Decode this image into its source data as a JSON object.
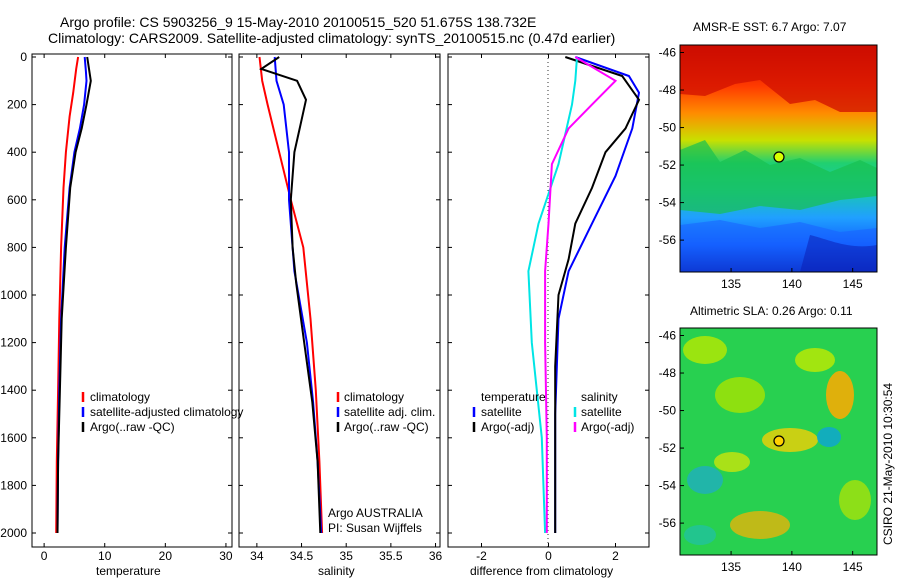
{
  "title_line1": "Argo profile: CS 5903256_9 15-May-2010 20100515_520 51.675S 138.732E",
  "title_line2": "Climatology: CARS2009. Satellite-adjusted climatology: synTS_20100515.nc (0.47d earlier)",
  "depth_ticks": [
    "0",
    "200",
    "400",
    "600",
    "800",
    "1000",
    "1200",
    "1400",
    "1600",
    "1800",
    "2000"
  ],
  "colors": {
    "clim": "#ff0000",
    "sat": "#0000ff",
    "argo": "#000000",
    "salsat": "#00e5e5",
    "salargo": "#ff00ff"
  },
  "temperature_panel": {
    "xlabel": "temperature",
    "xticks": [
      "0",
      "10",
      "20",
      "30"
    ],
    "legend": [
      "climatology",
      "satellite-adjusted climatology",
      "Argo(..raw -QC)"
    ]
  },
  "salinity_panel": {
    "xlabel": "salinity",
    "xticks": [
      "34",
      "34.5",
      "35",
      "35.5",
      "36"
    ],
    "legend": [
      "climatology",
      "satellite adj. clim.",
      "Argo(..raw -QC)"
    ],
    "note1": "Argo AUSTRALIA",
    "note2": "PI: Susan Wijffels"
  },
  "difference_panel": {
    "xlabel": "difference from climatology",
    "xticks": [
      "-2",
      "0",
      "2"
    ],
    "legend_temp_head": "temperature",
    "legend_temp": [
      "satellite",
      "Argo(-adj)"
    ],
    "legend_sal_head": "salinity",
    "legend_sal": [
      "satellite",
      "Argo(-adj)"
    ]
  },
  "sst_map": {
    "title": "AMSR-E SST: 6.7 Argo: 7.07",
    "yticks": [
      "-46",
      "-48",
      "-50",
      "-52",
      "-54",
      "-56"
    ],
    "xticks": [
      "135",
      "140",
      "145"
    ]
  },
  "sla_map": {
    "title": "Altimetric SLA: 0.26 Argo: 0.11",
    "yticks": [
      "-46",
      "-48",
      "-50",
      "-52",
      "-54",
      "-56"
    ],
    "xticks": [
      "135",
      "140",
      "145"
    ]
  },
  "side_label": "CSIRO 21-May-2010 10:30:54",
  "chart_data": [
    {
      "type": "line",
      "title": "temperature",
      "xlabel": "temperature",
      "ylabel": "",
      "xlim": [
        -2,
        31
      ],
      "ylim": [
        2050,
        0
      ],
      "series": [
        {
          "name": "climatology",
          "points": [
            [
              5.6,
              0
            ],
            [
              5.3,
              50
            ],
            [
              4.8,
              150
            ],
            [
              4.2,
              250
            ],
            [
              3.6,
              400
            ],
            [
              3.2,
              550
            ],
            [
              2.8,
              800
            ],
            [
              2.5,
              1100
            ],
            [
              2.3,
              1400
            ],
            [
              2.1,
              1700
            ],
            [
              2.0,
              2000
            ]
          ]
        },
        {
          "name": "satellite-adjusted climatology",
          "points": [
            [
              6.7,
              0
            ],
            [
              6.9,
              60
            ],
            [
              7.0,
              100
            ],
            [
              6.6,
              200
            ],
            [
              5.9,
              300
            ],
            [
              5.0,
              400
            ],
            [
              4.2,
              550
            ],
            [
              3.4,
              800
            ],
            [
              2.8,
              1100
            ],
            [
              2.5,
              1400
            ],
            [
              2.3,
              1700
            ],
            [
              2.2,
              2000
            ]
          ]
        },
        {
          "name": "Argo(..raw -QC)",
          "points": [
            [
              7.1,
              0
            ],
            [
              7.4,
              50
            ],
            [
              7.7,
              100
            ],
            [
              7.0,
              200
            ],
            [
              6.2,
              300
            ],
            [
              5.2,
              400
            ],
            [
              4.3,
              550
            ],
            [
              3.6,
              800
            ],
            [
              2.9,
              1100
            ],
            [
              2.6,
              1400
            ],
            [
              2.3,
              1700
            ],
            [
              2.2,
              2000
            ]
          ]
        }
      ]
    },
    {
      "type": "line",
      "title": "salinity",
      "xlabel": "salinity",
      "ylabel": "",
      "xlim": [
        33.8,
        36.05
      ],
      "ylim": [
        2050,
        0
      ],
      "series": [
        {
          "name": "climatology",
          "points": [
            [
              34.03,
              0
            ],
            [
              34.06,
              100
            ],
            [
              34.12,
              200
            ],
            [
              34.25,
              400
            ],
            [
              34.38,
              600
            ],
            [
              34.52,
              800
            ],
            [
              34.6,
              1100
            ],
            [
              34.66,
              1400
            ],
            [
              34.7,
              1700
            ],
            [
              34.73,
              2000
            ]
          ]
        },
        {
          "name": "satellite adj. clim.",
          "points": [
            [
              34.2,
              0
            ],
            [
              34.21,
              50
            ],
            [
              34.22,
              100
            ],
            [
              34.3,
              200
            ],
            [
              34.36,
              400
            ],
            [
              34.36,
              600
            ],
            [
              34.42,
              900
            ],
            [
              34.56,
              1200
            ],
            [
              34.63,
              1450
            ],
            [
              34.68,
              1700
            ],
            [
              34.72,
              2000
            ]
          ]
        },
        {
          "name": "Argo(..raw -QC)",
          "points": [
            [
              34.25,
              0
            ],
            [
              34.05,
              50
            ],
            [
              34.45,
              100
            ],
            [
              34.55,
              180
            ],
            [
              34.48,
              300
            ],
            [
              34.42,
              400
            ],
            [
              34.38,
              600
            ],
            [
              34.4,
              800
            ],
            [
              34.44,
              950
            ],
            [
              34.53,
              1200
            ],
            [
              34.62,
              1450
            ],
            [
              34.68,
              1700
            ],
            [
              34.71,
              2000
            ]
          ]
        }
      ]
    },
    {
      "type": "line",
      "title": "difference from climatology",
      "xlabel": "difference from climatology",
      "ylabel": "",
      "xlim": [
        -3,
        3
      ],
      "ylim": [
        2050,
        0
      ],
      "series": [
        {
          "name": "temperature satellite",
          "points": [
            [
              0.8,
              0
            ],
            [
              2.4,
              80
            ],
            [
              2.7,
              150
            ],
            [
              2.5,
              300
            ],
            [
              2.0,
              500
            ],
            [
              1.3,
              700
            ],
            [
              0.6,
              900
            ],
            [
              0.3,
              1100
            ],
            [
              0.2,
              1500
            ],
            [
              0.2,
              2000
            ]
          ]
        },
        {
          "name": "temperature Argo(-adj)",
          "points": [
            [
              0.5,
              0
            ],
            [
              2.2,
              80
            ],
            [
              2.7,
              180
            ],
            [
              2.3,
              300
            ],
            [
              1.7,
              400
            ],
            [
              1.3,
              550
            ],
            [
              0.8,
              700
            ],
            [
              0.6,
              850
            ],
            [
              0.3,
              1000
            ],
            [
              0.2,
              1300
            ],
            [
              0.2,
              2000
            ]
          ]
        },
        {
          "name": "salinity satellite",
          "points": [
            [
              0.85,
              0
            ],
            [
              0.8,
              100
            ],
            [
              0.7,
              200
            ],
            [
              0.3,
              450
            ],
            [
              -0.3,
              700
            ],
            [
              -0.6,
              900
            ],
            [
              -0.5,
              1200
            ],
            [
              -0.2,
              1600
            ],
            [
              -0.1,
              2000
            ]
          ]
        },
        {
          "name": "salinity Argo(-adj)",
          "points": [
            [
              0.8,
              0
            ],
            [
              2.0,
              100
            ],
            [
              1.3,
              200
            ],
            [
              0.6,
              300
            ],
            [
              0.1,
              450
            ],
            [
              0,
              700
            ],
            [
              -0.1,
              900
            ],
            [
              -0.1,
              1200
            ],
            [
              -0.05,
              1600
            ],
            [
              -0.05,
              2000
            ]
          ]
        }
      ]
    },
    {
      "type": "heatmap",
      "title": "AMSR-E SST: 6.7 Argo: 7.07",
      "xlabel": "",
      "ylabel": "",
      "xlim": [
        130.8,
        147.0
      ],
      "ylim": [
        -57.7,
        -45.6
      ],
      "argo_position": [
        138.732,
        -51.675
      ],
      "sst_argo": 7.07
    },
    {
      "type": "heatmap",
      "title": "Altimetric SLA: 0.26 Argo: 0.11",
      "xlabel": "",
      "ylabel": "",
      "xlim": [
        130.8,
        147.0
      ],
      "ylim": [
        -57.7,
        -45.6
      ],
      "argo_position": [
        138.732,
        -51.675
      ],
      "sla_argo": 0.11
    }
  ]
}
